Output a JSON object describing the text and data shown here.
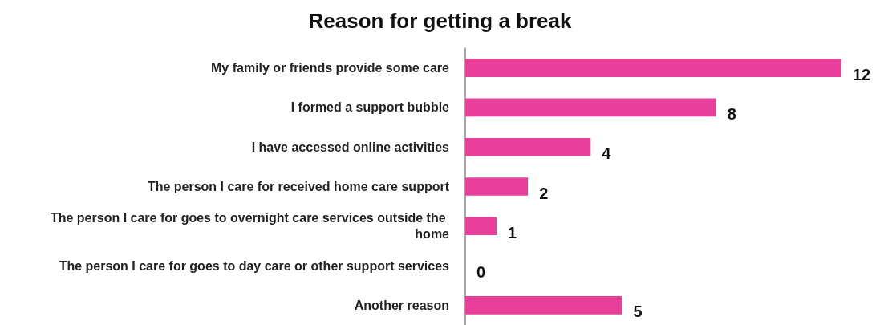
{
  "chart_data": {
    "type": "bar",
    "orientation": "horizontal",
    "title": "Reason for getting a break",
    "categories": [
      "My family or friends provide some care",
      "I formed a support bubble",
      "I have accessed online activities",
      "The person I care for received home care support",
      "The person I care for goes to overnight care services outside the home",
      "The person I care for goes to day care or other support services",
      "Another reason"
    ],
    "values": [
      12,
      8,
      4,
      2,
      1,
      0,
      5
    ],
    "color": "#e8409a",
    "data_labels": true
  }
}
